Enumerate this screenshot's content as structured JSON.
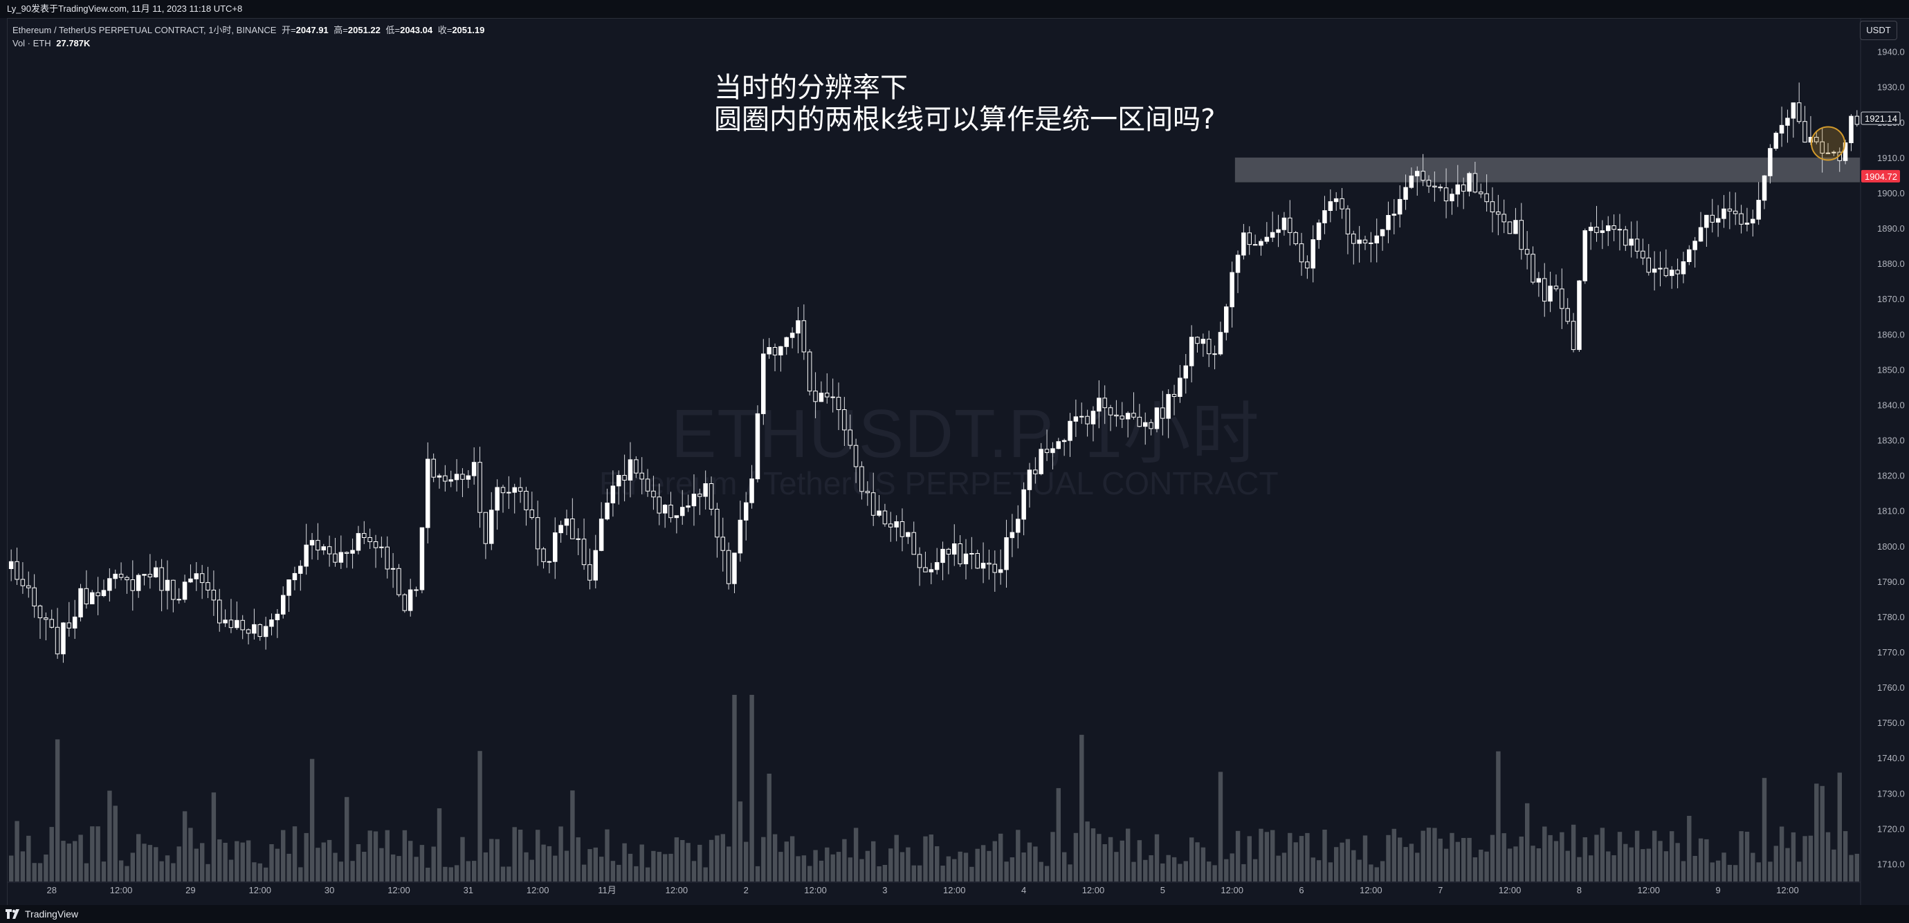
{
  "header": {
    "publisher_line": "Ly_90发表于TradingView.com,  11月 11, 2023 11:18 UTC+8"
  },
  "legend": {
    "symbol_desc": "Ethereum / TetherUS PERPETUAL CONTRACT, 1小时, BINANCE",
    "open_label": "开=",
    "open": "2047.91",
    "high_label": "高=",
    "high": "2051.22",
    "low_label": "低=",
    "low": "2043.04",
    "close_label": "收=",
    "close": "2051.19",
    "vol_label": "Vol · ETH",
    "vol": "27.787K"
  },
  "currency_button": "USDT",
  "watermark": {
    "symbol": "ETHUSDT.P, 1小时",
    "description": "Ethereum / TetherUS PERPETUAL CONTRACT"
  },
  "annotation": {
    "line1": "当时的分辨率下",
    "line2": "圆圈内的两根k线可以算作是统一区间吗?"
  },
  "footer": {
    "brand": "TradingView"
  },
  "colors": {
    "background": "#131722",
    "candle": "#ffffff",
    "volume": "#555960",
    "zone": "#5d6068",
    "last_price_bg": "#f23645",
    "circle": "#d29a2c"
  },
  "chart_data": {
    "type": "candlestick",
    "ylim": [
      1705,
      1946
    ],
    "y_ticks": [
      1710,
      1720,
      1730,
      1740,
      1750,
      1760,
      1770,
      1780,
      1790,
      1800,
      1810,
      1820,
      1830,
      1840,
      1850,
      1860,
      1870,
      1880,
      1890,
      1900,
      1910,
      1920,
      1930,
      1940
    ],
    "x_tick_labels": [
      {
        "label": "28",
        "bar": 7
      },
      {
        "label": "12:00",
        "bar": 19
      },
      {
        "label": "29",
        "bar": 31
      },
      {
        "label": "12:00",
        "bar": 43
      },
      {
        "label": "30",
        "bar": 55
      },
      {
        "label": "12:00",
        "bar": 67
      },
      {
        "label": "31",
        "bar": 79
      },
      {
        "label": "12:00",
        "bar": 91
      },
      {
        "label": "11月",
        "bar": 103
      },
      {
        "label": "12:00",
        "bar": 115
      },
      {
        "label": "2",
        "bar": 127
      },
      {
        "label": "12:00",
        "bar": 139
      },
      {
        "label": "3",
        "bar": 151
      },
      {
        "label": "12:00",
        "bar": 163
      },
      {
        "label": "4",
        "bar": 175
      },
      {
        "label": "12:00",
        "bar": 187
      },
      {
        "label": "5",
        "bar": 199
      },
      {
        "label": "12:00",
        "bar": 211
      },
      {
        "label": "6",
        "bar": 223
      },
      {
        "label": "12:00",
        "bar": 235
      },
      {
        "label": "7",
        "bar": 247
      },
      {
        "label": "12:00",
        "bar": 259
      },
      {
        "label": "8",
        "bar": 271
      },
      {
        "label": "12:00",
        "bar": 283
      },
      {
        "label": "9",
        "bar": 295
      },
      {
        "label": "12:00",
        "bar": 307
      }
    ],
    "price_labels": [
      {
        "value": 1921.14,
        "text": "1921.14",
        "style": "outline"
      },
      {
        "value": 1904.72,
        "text": "1904.72",
        "style": "red"
      }
    ],
    "zone": {
      "from_bar": 212,
      "to_bar": 320,
      "low": 1903,
      "high": 1910
    },
    "circle": {
      "bar": 314,
      "price": 1914
    },
    "anchors": [
      [
        0,
        1795
      ],
      [
        4,
        1782
      ],
      [
        8,
        1772
      ],
      [
        12,
        1785
      ],
      [
        16,
        1790
      ],
      [
        20,
        1789
      ],
      [
        24,
        1793
      ],
      [
        28,
        1787
      ],
      [
        32,
        1790
      ],
      [
        36,
        1781
      ],
      [
        40,
        1777
      ],
      [
        44,
        1775
      ],
      [
        48,
        1790
      ],
      [
        52,
        1801
      ],
      [
        56,
        1796
      ],
      [
        60,
        1803
      ],
      [
        64,
        1800
      ],
      [
        68,
        1784
      ],
      [
        70,
        1787
      ],
      [
        72,
        1822
      ],
      [
        76,
        1818
      ],
      [
        80,
        1823
      ],
      [
        82,
        1802
      ],
      [
        84,
        1815
      ],
      [
        88,
        1817
      ],
      [
        92,
        1795
      ],
      [
        96,
        1808
      ],
      [
        100,
        1792
      ],
      [
        104,
        1820
      ],
      [
        108,
        1822
      ],
      [
        112,
        1808
      ],
      [
        116,
        1811
      ],
      [
        120,
        1815
      ],
      [
        124,
        1790
      ],
      [
        128,
        1820
      ],
      [
        130,
        1852
      ],
      [
        134,
        1860
      ],
      [
        136,
        1866
      ],
      [
        138,
        1842
      ],
      [
        142,
        1844
      ],
      [
        146,
        1820
      ],
      [
        150,
        1808
      ],
      [
        154,
        1805
      ],
      [
        158,
        1792
      ],
      [
        162,
        1798
      ],
      [
        166,
        1797
      ],
      [
        170,
        1792
      ],
      [
        174,
        1808
      ],
      [
        176,
        1820
      ],
      [
        180,
        1830
      ],
      [
        184,
        1835
      ],
      [
        188,
        1840
      ],
      [
        192,
        1838
      ],
      [
        196,
        1834
      ],
      [
        200,
        1840
      ],
      [
        204,
        1858
      ],
      [
        208,
        1857
      ],
      [
        210,
        1870
      ],
      [
        212,
        1885
      ],
      [
        216,
        1888
      ],
      [
        220,
        1890
      ],
      [
        224,
        1880
      ],
      [
        228,
        1900
      ],
      [
        232,
        1888
      ],
      [
        236,
        1887
      ],
      [
        240,
        1896
      ],
      [
        242,
        1907
      ],
      [
        246,
        1900
      ],
      [
        248,
        1897
      ],
      [
        252,
        1903
      ],
      [
        256,
        1892
      ],
      [
        260,
        1891
      ],
      [
        264,
        1873
      ],
      [
        268,
        1870
      ],
      [
        270,
        1858
      ],
      [
        272,
        1892
      ],
      [
        276,
        1889
      ],
      [
        280,
        1885
      ],
      [
        284,
        1878
      ],
      [
        288,
        1880
      ],
      [
        292,
        1890
      ],
      [
        296,
        1893
      ],
      [
        300,
        1890
      ],
      [
        304,
        1910
      ],
      [
        306,
        1922
      ],
      [
        308,
        1924
      ],
      [
        310,
        1913
      ],
      [
        312,
        1915
      ],
      [
        314,
        1913
      ],
      [
        316,
        1908
      ],
      [
        318,
        1921
      ]
    ],
    "visible_bar_count": 320
  }
}
